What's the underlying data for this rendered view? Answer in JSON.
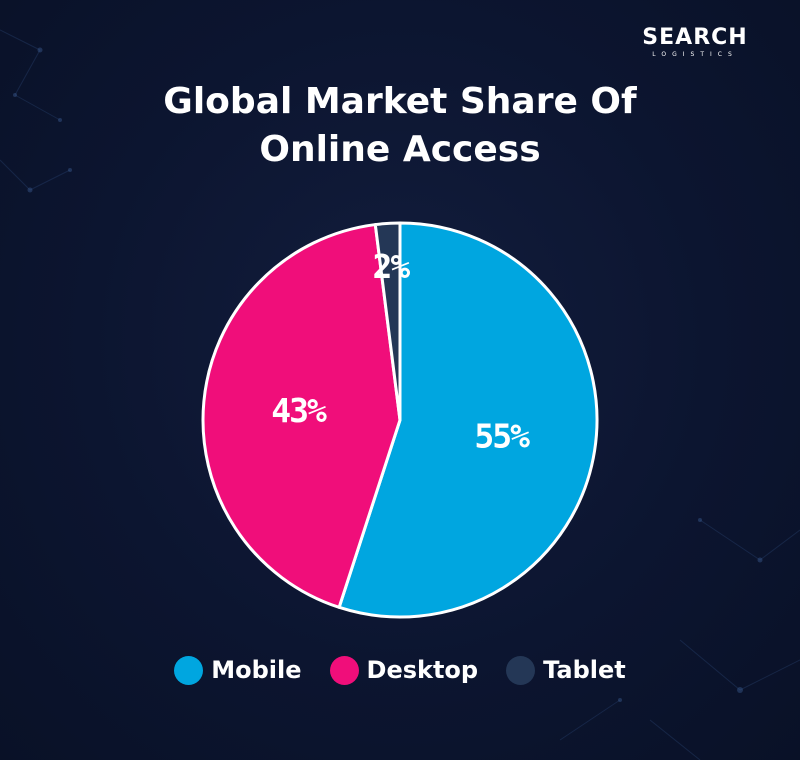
{
  "logo": {
    "main": "SEARCH",
    "sub": "LOGISTICS"
  },
  "colors": {
    "background": "#0c1530",
    "mobile": "#00a6e0",
    "desktop": "#f00e7a",
    "tablet": "#243756",
    "outline": "#ffffff"
  },
  "chart_data": {
    "type": "pie",
    "title": "Global Market Share Of Online Access",
    "series": [
      {
        "name": "Mobile",
        "value": 55,
        "label": "55%",
        "color": "#00a6e0"
      },
      {
        "name": "Desktop",
        "value": 43,
        "label": "43%",
        "color": "#f00e7a"
      },
      {
        "name": "Tablet",
        "value": 2,
        "label": "2%",
        "color": "#243756"
      }
    ],
    "start_angle_deg": 0,
    "direction": "clockwise",
    "legend_position": "bottom"
  }
}
